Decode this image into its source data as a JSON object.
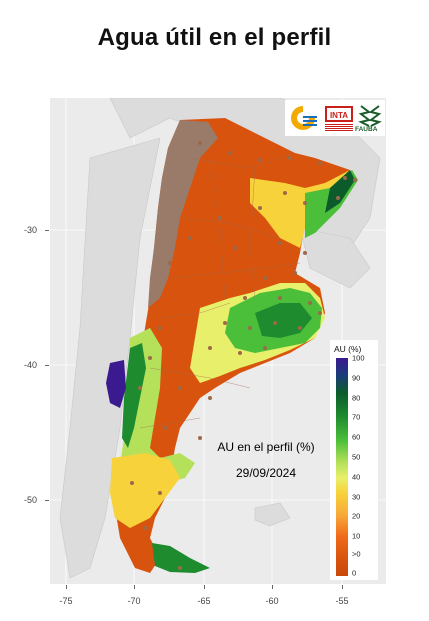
{
  "title": "Agua útil en el perfil",
  "map": {
    "x_ticks": [
      {
        "value": -75,
        "label": "-75"
      },
      {
        "value": -70,
        "label": "-70"
      },
      {
        "value": -65,
        "label": "-65"
      },
      {
        "value": -60,
        "label": "-60"
      },
      {
        "value": -55,
        "label": "-55"
      }
    ],
    "y_ticks": [
      {
        "value": -30,
        "label": "-30"
      },
      {
        "value": -40,
        "label": "-40"
      },
      {
        "value": -50,
        "label": "-50"
      }
    ],
    "annotation_line1": "AU en el perfil (%)",
    "annotation_line2": "29/09/2024"
  },
  "legend": {
    "title": "AU (%)",
    "labels": [
      "100",
      "90",
      "80",
      "70",
      "60",
      "50",
      "40",
      "30",
      "20",
      "10",
      ">0",
      "0"
    ]
  },
  "logos": {
    "fauba_text": "FAUBA",
    "inta_text": "INTA"
  },
  "colors": {
    "dry": "#d8540e",
    "mid": "#f7d23a",
    "wet": "#1e8c2e",
    "very_wet": "#3b1a8f",
    "no_data": "#9a7a68"
  }
}
